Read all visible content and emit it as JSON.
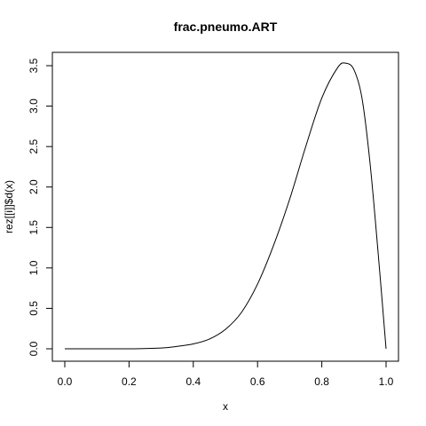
{
  "chart_data": {
    "type": "line",
    "title": "frac.pneumo.ART",
    "xlabel": "x",
    "ylabel": "rez[[i]]$d(x)",
    "xlim": [
      0.0,
      1.0
    ],
    "ylim": [
      0.0,
      3.6
    ],
    "xticks": [
      "0.0",
      "0.2",
      "0.4",
      "0.6",
      "0.8",
      "1.0"
    ],
    "yticks": [
      "0.0",
      "0.5",
      "1.0",
      "1.5",
      "2.0",
      "2.5",
      "3.0",
      "3.5"
    ],
    "grid": false,
    "legend": "none",
    "line_color": "#000000",
    "x": [
      0.0,
      0.1,
      0.2,
      0.3,
      0.35,
      0.4,
      0.45,
      0.5,
      0.55,
      0.6,
      0.65,
      0.7,
      0.75,
      0.8,
      0.85,
      0.875,
      0.9,
      0.925,
      0.95,
      0.975,
      1.0
    ],
    "y": [
      0.0,
      0.0,
      0.0,
      0.01,
      0.03,
      0.06,
      0.12,
      0.24,
      0.45,
      0.8,
      1.28,
      1.85,
      2.5,
      3.1,
      3.48,
      3.53,
      3.45,
      3.1,
      2.3,
      1.2,
      0.0
    ]
  }
}
